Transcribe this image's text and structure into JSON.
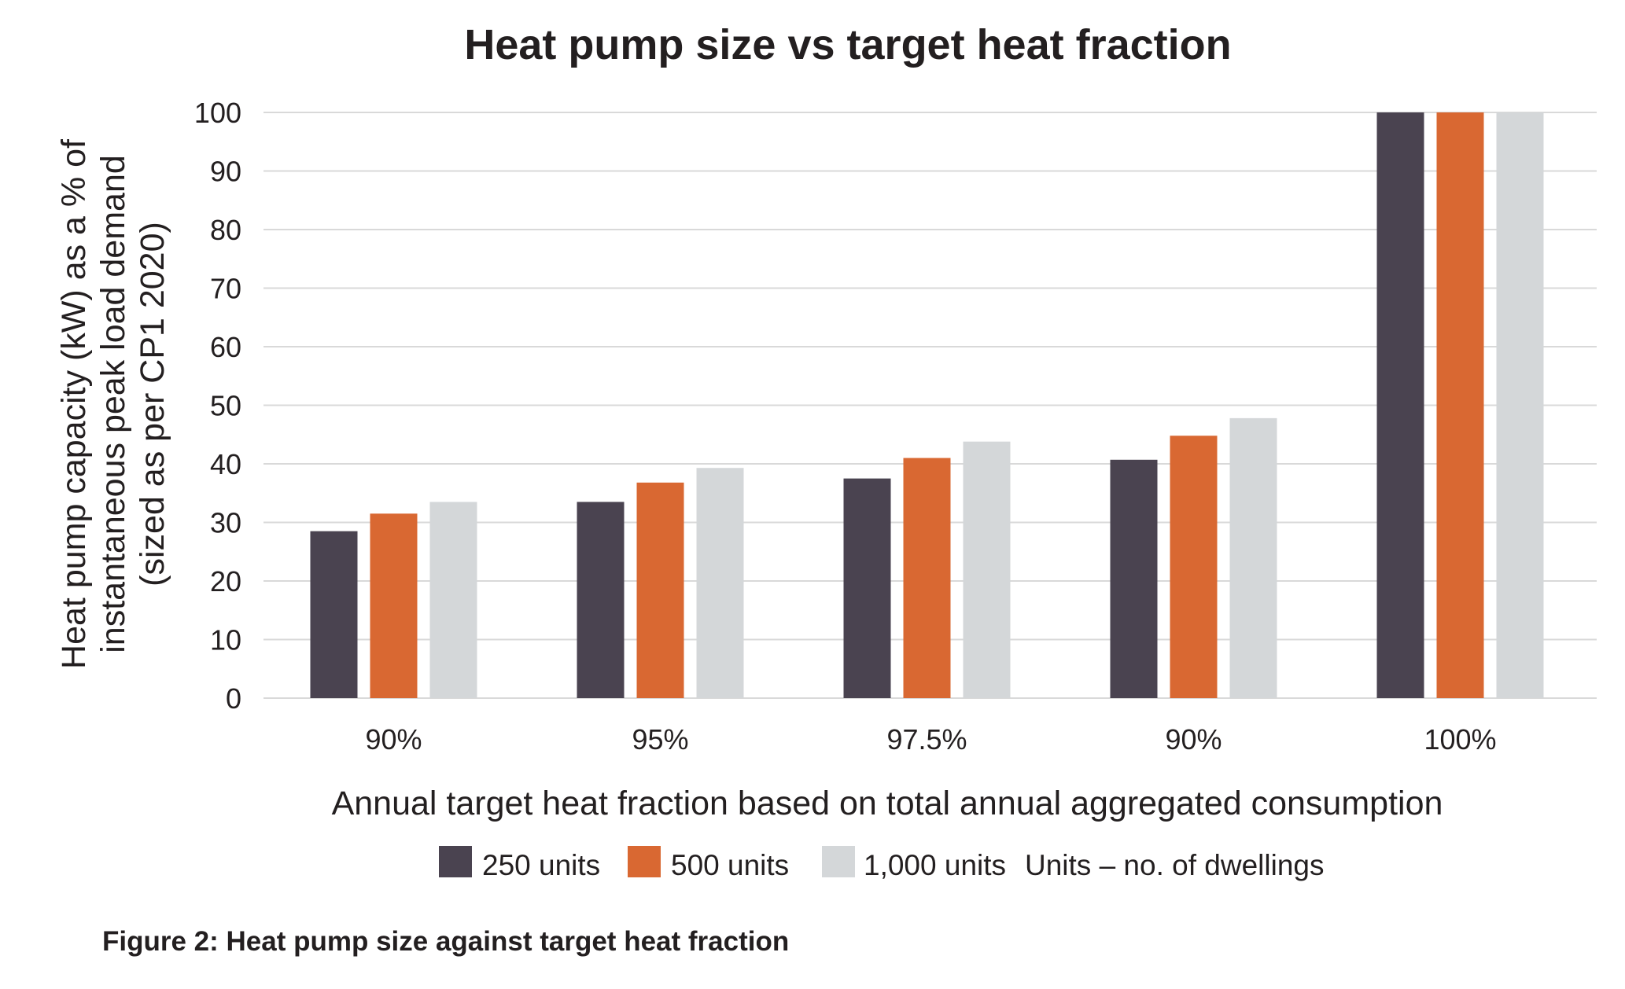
{
  "chart_data": {
    "type": "bar",
    "title": "Heat pump size vs target heat fraction",
    "xlabel": "Annual target heat fraction based on total annual aggregated consumption",
    "ylabel_lines": [
      "Heat pump capacity (kW) as a % of",
      "instantaneous peak load demand",
      "(sized as per CP1 2020)"
    ],
    "categories": [
      "90%",
      "95%",
      "97.5%",
      "90%",
      "100%"
    ],
    "ylim": [
      0,
      100
    ],
    "yticks": [
      "0",
      "10",
      "20",
      "30",
      "40",
      "50",
      "60",
      "70",
      "80",
      "90",
      "100"
    ],
    "grid": true,
    "legend_position": "bottom",
    "legend_note": "Units – no. of dwellings",
    "series": [
      {
        "name": "250 units",
        "color": "#4a4350",
        "values": [
          28.5,
          33.5,
          37.5,
          40.7,
          100
        ]
      },
      {
        "name": "500 units",
        "color": "#d96832",
        "values": [
          31.5,
          36.8,
          41.0,
          44.8,
          100
        ]
      },
      {
        "name": "1,000 units",
        "color": "#d4d7d9",
        "values": [
          33.5,
          39.3,
          43.8,
          47.8,
          100
        ]
      }
    ]
  },
  "caption": "Figure 2: Heat pump size against target heat fraction"
}
